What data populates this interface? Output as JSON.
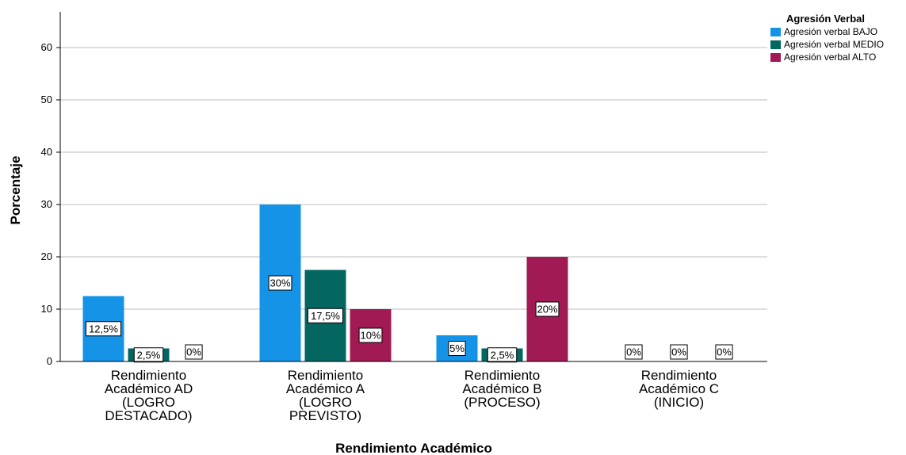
{
  "chart_data": {
    "type": "bar",
    "xlabel": "Rendimiento Académico",
    "ylabel": "Porcentaje",
    "ylim": [
      0,
      67
    ],
    "yticks": [
      0,
      10,
      20,
      30,
      40,
      50,
      60
    ],
    "grid": true,
    "legend_title": "Agresión Verbal",
    "legend_position": "top-right",
    "categories": [
      [
        "Rendimiento",
        "Académico AD",
        "(LOGRO",
        "DESTACADO)"
      ],
      [
        "Rendimiento",
        "Académico A",
        "(LOGRO",
        "PREVISTO)"
      ],
      [
        "Rendimiento",
        "Académico B",
        "(PROCESO)"
      ],
      [
        "Rendimiento",
        "Académico C",
        "(INICIO)"
      ]
    ],
    "series": [
      {
        "name": "Agresión verbal BAJO",
        "color": "#1593e6",
        "values": [
          12.5,
          30,
          5,
          0
        ],
        "labels": [
          "12,5%",
          "30%",
          "5%",
          "0%"
        ]
      },
      {
        "name": "Agresión verbal MEDIO",
        "color": "#036660",
        "values": [
          2.5,
          17.5,
          2.5,
          0
        ],
        "labels": [
          "2,5%",
          "17,5%",
          "2,5%",
          "0%"
        ]
      },
      {
        "name": "Agresión verbal ALTO",
        "color": "#a11a53",
        "values": [
          0,
          10,
          20,
          0
        ],
        "labels": [
          "0%",
          "10%",
          "20%",
          "0%"
        ]
      }
    ]
  }
}
